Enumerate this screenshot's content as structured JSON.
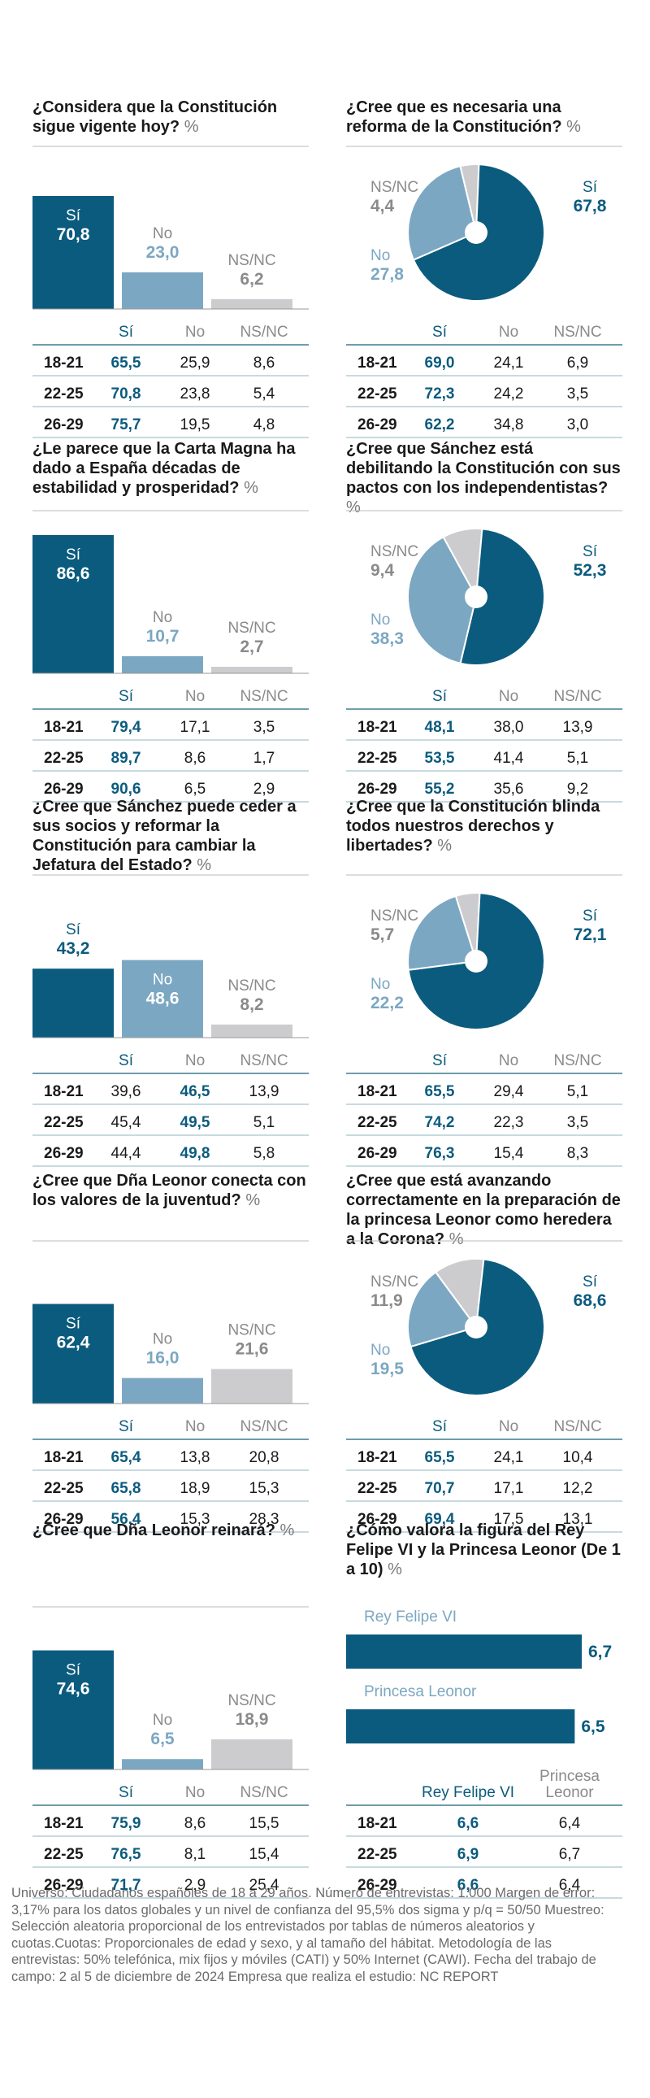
{
  "colors": {
    "si": "#0b5b7e",
    "no": "#7ca7c2",
    "ns": "#cccccf",
    "rule": "#3f7d8f",
    "grid": "#8fb4c2",
    "text": "#1a1a1a",
    "muted": "#8a8a8a"
  },
  "panels": [
    {
      "id": "constitucion-vigente",
      "type": "bar",
      "title": "¿Considera que la Constitución sigue vigente hoy?",
      "unit": "%",
      "chart_data": {
        "type": "bar",
        "categories": [
          "Sí",
          "No",
          "NS/NC"
        ],
        "values": [
          70.8,
          23.0,
          6.2
        ],
        "display": [
          "70,8",
          "23,0",
          "6,2"
        ]
      },
      "table": {
        "headers": [
          "Sí",
          "No",
          "NS/NC"
        ],
        "rows": [
          {
            "label": "18-21",
            "values": [
              "65,5",
              "25,9",
              "8,6"
            ]
          },
          {
            "label": "22-25",
            "values": [
              "70,8",
              "23,8",
              "5,4"
            ]
          },
          {
            "label": "26-29",
            "values": [
              "75,7",
              "19,5",
              "4,8"
            ]
          }
        ]
      }
    },
    {
      "id": "reforma-constitucion",
      "type": "pie",
      "title": "¿Cree que es necesaria una reforma de la Constitución?",
      "unit": "%",
      "chart_data": {
        "type": "pie",
        "categories": [
          "Sí",
          "No",
          "NS/NC"
        ],
        "values": [
          67.8,
          27.8,
          4.4
        ],
        "display": [
          "67,8",
          "27,8",
          "4,4"
        ]
      },
      "table": {
        "headers": [
          "Sí",
          "No",
          "NS/NC"
        ],
        "rows": [
          {
            "label": "18-21",
            "values": [
              "69,0",
              "24,1",
              "6,9"
            ]
          },
          {
            "label": "22-25",
            "values": [
              "72,3",
              "24,2",
              "3,5"
            ]
          },
          {
            "label": "26-29",
            "values": [
              "62,2",
              "34,8",
              "3,0"
            ]
          }
        ]
      }
    },
    {
      "id": "carta-magna",
      "type": "bar",
      "title": "¿Le parece que la Carta Magna ha dado a España décadas de estabilidad y prosperidad?",
      "unit": "%",
      "chart_data": {
        "type": "bar",
        "categories": [
          "Sí",
          "No",
          "NS/NC"
        ],
        "values": [
          86.6,
          10.7,
          2.7
        ],
        "display": [
          "86,6",
          "10,7",
          "2,7"
        ]
      },
      "table": {
        "headers": [
          "Sí",
          "No",
          "NS/NC"
        ],
        "rows": [
          {
            "label": "18-21",
            "values": [
              "79,4",
              "17,1",
              "3,5"
            ]
          },
          {
            "label": "22-25",
            "values": [
              "89,7",
              "8,6",
              "1,7"
            ]
          },
          {
            "label": "26-29",
            "values": [
              "90,6",
              "6,5",
              "2,9"
            ]
          }
        ]
      }
    },
    {
      "id": "sanchez-debilitando",
      "type": "pie",
      "title": "¿Cree que Sánchez está debilitando la Constitución con sus pactos con los independentistas?",
      "unit": "%",
      "chart_data": {
        "type": "pie",
        "categories": [
          "Sí",
          "No",
          "NS/NC"
        ],
        "values": [
          52.3,
          38.3,
          9.4
        ],
        "display": [
          "52,3",
          "38,3",
          "9,4"
        ]
      },
      "table": {
        "headers": [
          "Sí",
          "No",
          "NS/NC"
        ],
        "rows": [
          {
            "label": "18-21",
            "values": [
              "48,1",
              "38,0",
              "13,9"
            ]
          },
          {
            "label": "22-25",
            "values": [
              "53,5",
              "41,4",
              "5,1"
            ]
          },
          {
            "label": "26-29",
            "values": [
              "55,2",
              "35,6",
              "9,2"
            ]
          }
        ]
      }
    },
    {
      "id": "sanchez-jefatura",
      "type": "bar",
      "title": "¿Cree que Sánchez puede ceder a sus socios y reformar la Constitución para cambiar la Jefatura del Estado?",
      "unit": "%",
      "chart_data": {
        "type": "bar",
        "categories": [
          "Sí",
          "No",
          "NS/NC"
        ],
        "values": [
          43.2,
          48.6,
          8.2
        ],
        "display": [
          "43,2",
          "48,6",
          "8,2"
        ]
      },
      "table": {
        "headers": [
          "Sí",
          "No",
          "NS/NC"
        ],
        "rows": [
          {
            "label": "18-21",
            "values": [
              "39,6",
              "46,5",
              "13,9"
            ]
          },
          {
            "label": "22-25",
            "values": [
              "45,4",
              "49,5",
              "5,1"
            ]
          },
          {
            "label": "26-29",
            "values": [
              "44,4",
              "49,8",
              "5,8"
            ]
          }
        ]
      }
    },
    {
      "id": "blinda-derechos",
      "type": "pie",
      "title": "¿Cree que la Constitución blinda todos nuestros derechos y libertades?",
      "unit": "%",
      "chart_data": {
        "type": "pie",
        "categories": [
          "Sí",
          "No",
          "NS/NC"
        ],
        "values": [
          72.1,
          22.2,
          5.7
        ],
        "display": [
          "72,1",
          "22,2",
          "5,7"
        ]
      },
      "table": {
        "headers": [
          "Sí",
          "No",
          "NS/NC"
        ],
        "rows": [
          {
            "label": "18-21",
            "values": [
              "65,5",
              "29,4",
              "5,1"
            ]
          },
          {
            "label": "22-25",
            "values": [
              "74,2",
              "22,3",
              "3,5"
            ]
          },
          {
            "label": "26-29",
            "values": [
              "76,3",
              "15,4",
              "8,3"
            ]
          }
        ]
      }
    },
    {
      "id": "leonor-valores",
      "type": "bar",
      "title": "¿Cree que Dña Leonor conecta con los valores de la juventud?",
      "unit": "%",
      "chart_data": {
        "type": "bar",
        "categories": [
          "Sí",
          "No",
          "NS/NC"
        ],
        "values": [
          62.4,
          16.0,
          21.6
        ],
        "display": [
          "62,4",
          "16,0",
          "21,6"
        ]
      },
      "table": {
        "headers": [
          "Sí",
          "No",
          "NS/NC"
        ],
        "rows": [
          {
            "label": "18-21",
            "values": [
              "65,4",
              "13,8",
              "20,8"
            ]
          },
          {
            "label": "22-25",
            "values": [
              "65,8",
              "18,9",
              "15,3"
            ]
          },
          {
            "label": "26-29",
            "values": [
              "56,4",
              "15,3",
              "28,3"
            ]
          }
        ]
      }
    },
    {
      "id": "leonor-preparacion",
      "type": "pie",
      "title": "¿Cree que está avanzando correctamente en la preparación de la princesa Leonor como heredera a la Corona?",
      "unit": "%",
      "chart_data": {
        "type": "pie",
        "categories": [
          "Sí",
          "No",
          "NS/NC"
        ],
        "values": [
          68.6,
          19.5,
          11.9
        ],
        "display": [
          "68,6",
          "19,5",
          "11,9"
        ]
      },
      "table": {
        "headers": [
          "Sí",
          "No",
          "NS/NC"
        ],
        "rows": [
          {
            "label": "18-21",
            "values": [
              "65,5",
              "24,1",
              "10,4"
            ]
          },
          {
            "label": "22-25",
            "values": [
              "70,7",
              "17,1",
              "12,2"
            ]
          },
          {
            "label": "26-29",
            "values": [
              "69,4",
              "17,5",
              "13,1"
            ]
          }
        ]
      }
    },
    {
      "id": "leonor-reinara",
      "type": "bar",
      "title": "¿Cree que Dña Leonor reinará?",
      "unit": "%",
      "chart_data": {
        "type": "bar",
        "categories": [
          "Sí",
          "No",
          "NS/NC"
        ],
        "values": [
          74.6,
          6.5,
          18.9
        ],
        "display": [
          "74,6",
          "6,5",
          "18,9"
        ]
      },
      "table": {
        "headers": [
          "Sí",
          "No",
          "NS/NC"
        ],
        "rows": [
          {
            "label": "18-21",
            "values": [
              "75,9",
              "8,6",
              "15,5"
            ]
          },
          {
            "label": "22-25",
            "values": [
              "76,5",
              "8,1",
              "15,4"
            ]
          },
          {
            "label": "26-29",
            "values": [
              "71,7",
              "2,9",
              "25,4"
            ]
          }
        ]
      }
    },
    {
      "id": "valoracion",
      "type": "hbar",
      "title": "¿Cómo valora la figura del Rey Felipe VI y la Princesa Leonor (De 1 a 10)",
      "unit": "%",
      "chart_data": {
        "type": "bar",
        "orientation": "horizontal",
        "categories": [
          "Rey Felipe VI",
          "Princesa Leonor"
        ],
        "values": [
          6.7,
          6.5
        ],
        "display": [
          "6,7",
          "6,5"
        ],
        "xlim": [
          0,
          10
        ]
      },
      "table": {
        "headers": [
          "Rey Felipe VI",
          "Princesa Leonor"
        ],
        "rows": [
          {
            "label": "18-21",
            "values": [
              "6,6",
              "6,4"
            ]
          },
          {
            "label": "22-25",
            "values": [
              "6,9",
              "6,7"
            ]
          },
          {
            "label": "26-29",
            "values": [
              "6,6",
              "6,4"
            ]
          }
        ]
      }
    }
  ],
  "footer": "Universo: Ciudadanos españoles de 18 a 29 años. Número de entrevistas: 1.000 Margen de error: 3,17% para los datos globales y un nivel de confianza del 95,5% dos sigma y p/q = 50/50 Muestreo: Selección aleatoria proporcional de los entrevistados por tablas de números aleatorios y cuotas.Cuotas: Proporcionales de edad y sexo, y al tamaño del hábitat. Metodología de las entrevistas: 50% telefónica, mix fijos y móviles (CATI) y 50% Internet (CAWI). Fecha del trabajo de campo: 2 al 5 de diciembre de 2024 Empresa que realiza el estudio: NC REPORT"
}
